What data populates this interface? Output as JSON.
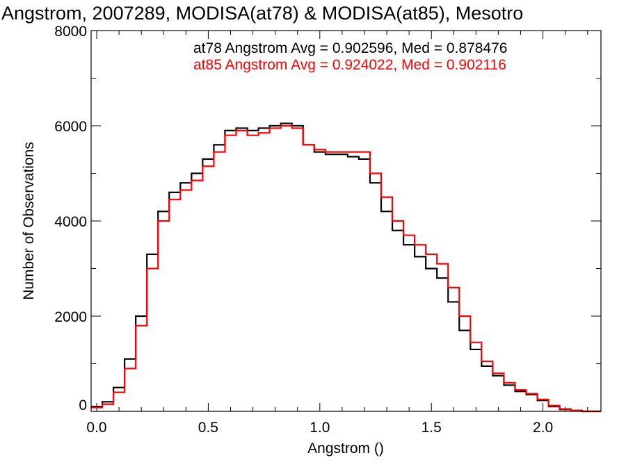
{
  "chart_data": {
    "type": "line",
    "title": "Angstrom, 2007289, MODISA(at78) & MODISA(at85), Mesotro",
    "xlabel": "Angstrom ()",
    "ylabel": "Number of Observations",
    "xlim": [
      -0.025,
      2.26
    ],
    "ylim": [
      0,
      8000
    ],
    "xticks": [
      0.0,
      0.5,
      1.0,
      1.5,
      2.0
    ],
    "xtick_labels": [
      "0.0",
      "0.5",
      "1.0",
      "1.5",
      "2.0"
    ],
    "yticks": [
      0,
      2000,
      4000,
      6000,
      8000
    ],
    "ytick_labels": [
      "0",
      "2000",
      "4000",
      "6000",
      "8000"
    ],
    "grid": false,
    "annotations": [
      {
        "text": "at78 Angstrom Avg = 0.902596, Med = 0.878476",
        "color": "#000000"
      },
      {
        "text": "at85 Angstrom Avg = 0.924022, Med = 0.902116",
        "color": "#ff0000"
      }
    ],
    "bin_width": 0.05,
    "x": [
      0.0,
      0.05,
      0.1,
      0.15,
      0.2,
      0.25,
      0.3,
      0.35,
      0.4,
      0.45,
      0.5,
      0.55,
      0.6,
      0.65,
      0.7,
      0.75,
      0.8,
      0.85,
      0.9,
      0.95,
      1.0,
      1.05,
      1.1,
      1.15,
      1.2,
      1.25,
      1.3,
      1.35,
      1.4,
      1.45,
      1.5,
      1.55,
      1.6,
      1.65,
      1.7,
      1.75,
      1.8,
      1.85,
      1.9,
      1.95,
      2.0,
      2.05,
      2.1,
      2.15,
      2.2
    ],
    "series": [
      {
        "name": "at78",
        "color": "#000000",
        "values": [
          100,
          200,
          500,
          1100,
          2000,
          3300,
          4200,
          4600,
          4800,
          5000,
          5300,
          5600,
          5900,
          5950,
          5900,
          5950,
          6000,
          6050,
          6000,
          5600,
          5450,
          5400,
          5400,
          5350,
          5300,
          4800,
          4200,
          3800,
          3500,
          3250,
          3000,
          2800,
          2300,
          1700,
          1300,
          950,
          750,
          550,
          420,
          350,
          230,
          100,
          40,
          10,
          0
        ]
      },
      {
        "name": "at85",
        "color": "#ff0000",
        "values": [
          80,
          150,
          400,
          900,
          1800,
          3000,
          4000,
          4450,
          4650,
          4850,
          5150,
          5450,
          5800,
          5900,
          5800,
          5850,
          5950,
          6000,
          5950,
          5600,
          5500,
          5450,
          5450,
          5450,
          5450,
          5000,
          4500,
          4000,
          3700,
          3500,
          3300,
          3100,
          2600,
          2000,
          1450,
          1050,
          800,
          600,
          450,
          370,
          250,
          120,
          50,
          20,
          0
        ]
      }
    ]
  }
}
